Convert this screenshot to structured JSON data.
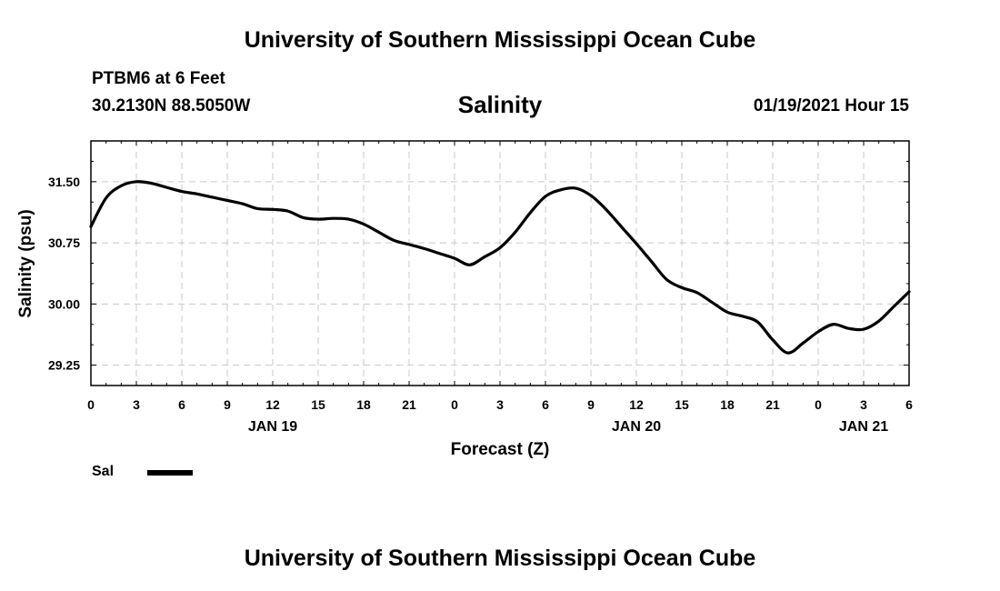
{
  "header": {
    "org_title": "University of Southern Mississippi Ocean Cube",
    "station": "PTBM6 at 6 Feet",
    "coordinates": "30.2130N 88.5050W",
    "timestamp": "01/19/2021 Hour 15"
  },
  "footer": {
    "org_title": "University of Southern Mississippi Ocean Cube"
  },
  "legend": {
    "label": "Sal",
    "color": "#000000"
  },
  "chart_data": {
    "type": "line",
    "title": "Salinity",
    "xlabel": "Forecast (Z)",
    "ylabel": "Salinity (psu)",
    "xlim": [
      0,
      54
    ],
    "ylim": [
      29.0,
      32.0
    ],
    "x_ticks": [
      0,
      3,
      6,
      9,
      12,
      15,
      18,
      21,
      24,
      27,
      30,
      33,
      36,
      39,
      42,
      45,
      48,
      51,
      54
    ],
    "x_tick_labels": [
      "0",
      "3",
      "6",
      "9",
      "12",
      "15",
      "18",
      "21",
      "0",
      "3",
      "6",
      "9",
      "12",
      "15",
      "18",
      "21",
      "0",
      "3",
      "6"
    ],
    "date_labels": [
      {
        "x": 12,
        "label": "JAN 19"
      },
      {
        "x": 36,
        "label": "JAN 20"
      },
      {
        "x": 51,
        "label": "JAN 21"
      }
    ],
    "y_ticks": [
      29.25,
      30.0,
      30.75,
      31.5
    ],
    "y_tick_labels": [
      "29.25",
      "30.00",
      "30.75",
      "31.50"
    ],
    "grid": true,
    "series": [
      {
        "name": "Sal",
        "color": "#000000",
        "x": [
          0,
          1,
          2,
          3,
          4,
          5,
          6,
          7,
          8,
          9,
          10,
          11,
          12,
          13,
          14,
          15,
          16,
          17,
          18,
          19,
          20,
          21,
          22,
          23,
          24,
          25,
          26,
          27,
          28,
          29,
          30,
          31,
          32,
          33,
          34,
          35,
          36,
          37,
          38,
          39,
          40,
          41,
          42,
          43,
          44,
          45,
          46,
          47,
          48,
          49,
          50,
          51,
          52,
          53,
          54
        ],
        "values": [
          30.95,
          31.3,
          31.45,
          31.5,
          31.48,
          31.43,
          31.38,
          31.35,
          31.31,
          31.27,
          31.23,
          31.17,
          31.16,
          31.14,
          31.06,
          31.04,
          31.05,
          31.04,
          30.98,
          30.88,
          30.78,
          30.73,
          30.68,
          30.62,
          30.56,
          30.48,
          30.58,
          30.69,
          30.88,
          31.12,
          31.32,
          31.4,
          31.42,
          31.33,
          31.16,
          30.95,
          30.74,
          30.52,
          30.3,
          30.2,
          30.14,
          30.02,
          29.9,
          29.85,
          29.78,
          29.56,
          29.4,
          29.52,
          29.66,
          29.75,
          29.7,
          29.69,
          29.79,
          29.97,
          30.15
        ]
      }
    ]
  }
}
